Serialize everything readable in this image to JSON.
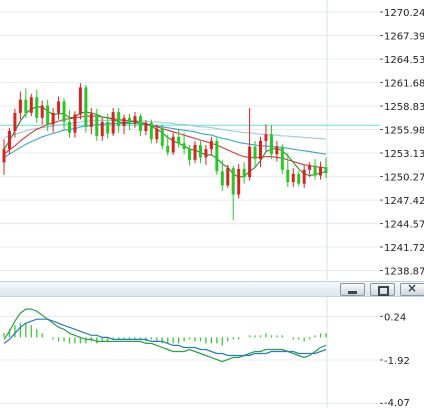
{
  "colors": {
    "background": "#ffffff",
    "grid": "#e6ecef",
    "axis_line": "#cfd6dc",
    "candle_up": "#e02020",
    "candle_down": "#22cc22",
    "ma_short": "#2a8a2a",
    "ma_mid": "#d23c3c",
    "ma_long": "#3aa8c8",
    "ma_xlong": "#9acbd8",
    "highlight_line": "#66dddd",
    "macd_dif": "#2aa04a",
    "macd_dea": "#2a7ab8",
    "macd_hist": "#33cc33"
  },
  "pane_titlebar": {
    "buttons": [
      {
        "name": "minimize-button",
        "icon": "minimize-icon"
      },
      {
        "name": "maximize-button",
        "icon": "maximize-icon"
      },
      {
        "name": "close-button",
        "icon": "close-icon"
      }
    ],
    "close_glyph": "×"
  },
  "chart_data": [
    {
      "type": "candlestick",
      "title": "",
      "ylim": [
        1237.6,
        1271.7
      ],
      "y_ticks": [
        "1270.24",
        "1267.39",
        "1264.53",
        "1261.68",
        "1258.83",
        "1255.98",
        "1253.13",
        "1250.27",
        "1247.42",
        "1244.57",
        "1241.72",
        "1238.87"
      ],
      "y_tick_values": [
        1270.24,
        1267.39,
        1264.53,
        1261.68,
        1258.83,
        1255.98,
        1253.13,
        1250.27,
        1247.42,
        1244.57,
        1241.72,
        1238.87
      ],
      "horizontal_highlight": 1256.5,
      "candles": [
        [
          1252.0,
          1254.8,
          1250.5,
          1253.6
        ],
        [
          1253.6,
          1256.2,
          1253.0,
          1255.8
        ],
        [
          1255.8,
          1258.5,
          1255.0,
          1258.0
        ],
        [
          1258.0,
          1260.6,
          1257.2,
          1259.6
        ],
        [
          1259.6,
          1261.0,
          1257.4,
          1258.0
        ],
        [
          1258.0,
          1260.3,
          1257.6,
          1259.9
        ],
        [
          1259.9,
          1260.8,
          1256.8,
          1257.4
        ],
        [
          1257.4,
          1259.5,
          1256.6,
          1258.9
        ],
        [
          1258.9,
          1259.6,
          1255.8,
          1256.6
        ],
        [
          1256.6,
          1258.6,
          1255.6,
          1258.0
        ],
        [
          1258.0,
          1260.0,
          1257.2,
          1259.4
        ],
        [
          1259.4,
          1259.8,
          1256.0,
          1256.9
        ],
        [
          1256.9,
          1258.3,
          1255.0,
          1255.6
        ],
        [
          1255.6,
          1258.2,
          1255.0,
          1257.8
        ],
        [
          1257.8,
          1261.6,
          1257.2,
          1261.1
        ],
        [
          1261.1,
          1261.4,
          1255.6,
          1256.3
        ],
        [
          1256.3,
          1258.6,
          1255.4,
          1257.9
        ],
        [
          1257.9,
          1258.5,
          1254.6,
          1255.2
        ],
        [
          1255.2,
          1257.4,
          1254.6,
          1256.9
        ],
        [
          1256.9,
          1257.9,
          1254.9,
          1255.5
        ],
        [
          1255.5,
          1258.6,
          1255.2,
          1258.1
        ],
        [
          1258.1,
          1258.6,
          1255.6,
          1256.4
        ],
        [
          1256.4,
          1257.8,
          1255.4,
          1257.4
        ],
        [
          1257.4,
          1257.9,
          1255.9,
          1256.7
        ],
        [
          1256.7,
          1258.1,
          1256.2,
          1257.6
        ],
        [
          1257.6,
          1257.9,
          1255.2,
          1255.8
        ],
        [
          1255.8,
          1257.1,
          1255.3,
          1256.8
        ],
        [
          1256.8,
          1257.2,
          1254.3,
          1254.8
        ],
        [
          1254.8,
          1256.6,
          1254.3,
          1256.1
        ],
        [
          1256.1,
          1256.6,
          1253.6,
          1254.0
        ],
        [
          1254.0,
          1255.4,
          1252.8,
          1253.2
        ],
        [
          1253.2,
          1255.6,
          1252.9,
          1255.1
        ],
        [
          1255.1,
          1256.0,
          1253.8,
          1254.3
        ],
        [
          1254.3,
          1255.6,
          1253.0,
          1253.6
        ],
        [
          1253.6,
          1254.1,
          1251.6,
          1252.3
        ],
        [
          1252.3,
          1254.6,
          1251.9,
          1254.1
        ],
        [
          1254.1,
          1254.6,
          1251.9,
          1252.6
        ],
        [
          1252.6,
          1254.1,
          1251.7,
          1253.6
        ],
        [
          1253.6,
          1255.1,
          1252.9,
          1254.6
        ],
        [
          1254.6,
          1255.0,
          1250.5,
          1250.9
        ],
        [
          1250.9,
          1252.3,
          1248.5,
          1249.2
        ],
        [
          1249.2,
          1251.7,
          1248.9,
          1251.3
        ],
        [
          1251.3,
          1251.6,
          1245.0,
          1248.1
        ],
        [
          1248.1,
          1251.8,
          1247.6,
          1251.2
        ],
        [
          1251.2,
          1252.0,
          1249.4,
          1250.2
        ],
        [
          1250.2,
          1258.6,
          1249.8,
          1253.9
        ],
        [
          1253.9,
          1254.6,
          1251.3,
          1252.4
        ],
        [
          1252.4,
          1255.1,
          1251.4,
          1254.6
        ],
        [
          1254.6,
          1256.6,
          1253.4,
          1255.4
        ],
        [
          1255.4,
          1256.5,
          1252.4,
          1253.0
        ],
        [
          1253.0,
          1254.6,
          1252.1,
          1253.9
        ],
        [
          1253.9,
          1254.2,
          1250.6,
          1251.1
        ],
        [
          1251.1,
          1253.1,
          1249.0,
          1249.6
        ],
        [
          1249.6,
          1251.3,
          1249.0,
          1250.6
        ],
        [
          1250.6,
          1250.9,
          1249.1,
          1249.4
        ],
        [
          1249.4,
          1251.6,
          1248.9,
          1251.1
        ],
        [
          1251.1,
          1252.0,
          1250.2,
          1251.6
        ],
        [
          1251.6,
          1252.4,
          1249.9,
          1250.4
        ],
        [
          1250.4,
          1252.1,
          1249.9,
          1251.4
        ],
        [
          1251.4,
          1252.6,
          1250.1,
          1250.7
        ]
      ],
      "ma_short": [
        1253.6,
        1254.6,
        1255.8,
        1257.0,
        1257.9,
        1258.5,
        1258.7,
        1258.7,
        1258.2,
        1257.8,
        1257.9,
        1257.9,
        1257.4,
        1257.5,
        1258.0,
        1258.1,
        1258.0,
        1257.8,
        1257.5,
        1257.4,
        1257.2,
        1256.9,
        1256.8,
        1256.9,
        1257.0,
        1256.8,
        1256.7,
        1256.4,
        1256.0,
        1255.6,
        1255.0,
        1254.6,
        1254.3,
        1254.0,
        1253.6,
        1253.5,
        1253.2,
        1252.9,
        1252.9,
        1252.5,
        1251.8,
        1251.4,
        1250.6,
        1250.2,
        1250.3,
        1250.9,
        1251.4,
        1252.2,
        1253.3,
        1253.6,
        1253.7,
        1253.4,
        1252.8,
        1252.0,
        1251.2,
        1250.6,
        1250.4,
        1250.5,
        1250.7,
        1250.9
      ],
      "ma_mid": [
        1253.0,
        1253.5,
        1254.0,
        1254.6,
        1255.1,
        1255.6,
        1256.0,
        1256.3,
        1256.6,
        1256.8,
        1257.0,
        1257.2,
        1257.3,
        1257.4,
        1257.5,
        1257.6,
        1257.6,
        1257.6,
        1257.5,
        1257.4,
        1257.3,
        1257.2,
        1257.1,
        1257.0,
        1256.9,
        1256.8,
        1256.7,
        1256.5,
        1256.3,
        1256.1,
        1255.9,
        1255.7,
        1255.5,
        1255.3,
        1255.1,
        1254.9,
        1254.7,
        1254.5,
        1254.3,
        1254.1,
        1253.8,
        1253.5,
        1253.2,
        1252.9,
        1252.7,
        1252.6,
        1252.6,
        1252.6,
        1252.7,
        1252.7,
        1252.6,
        1252.5,
        1252.3,
        1252.1,
        1251.9,
        1251.7,
        1251.6,
        1251.5,
        1251.4,
        1251.3
      ],
      "ma_long": [
        1252.6,
        1253.0,
        1253.4,
        1253.8,
        1254.2,
        1254.5,
        1254.8,
        1255.1,
        1255.3,
        1255.5,
        1255.7,
        1255.9,
        1256.0,
        1256.1,
        1256.3,
        1256.4,
        1256.5,
        1256.6,
        1256.6,
        1256.7,
        1256.7,
        1256.7,
        1256.7,
        1256.7,
        1256.7,
        1256.6,
        1256.6,
        1256.5,
        1256.4,
        1256.3,
        1256.2,
        1256.1,
        1256.0,
        1255.9,
        1255.8,
        1255.7,
        1255.5,
        1255.4,
        1255.3,
        1255.1,
        1254.9,
        1254.8,
        1254.6,
        1254.4,
        1254.3,
        1254.2,
        1254.1,
        1254.0,
        1254.0,
        1253.9,
        1253.9,
        1253.8,
        1253.7,
        1253.6,
        1253.5,
        1253.4,
        1253.3,
        1253.2,
        1253.1,
        1253.0
      ],
      "ma_xlong": [
        1255.0,
        1255.2,
        1255.4,
        1255.6,
        1255.8,
        1256.0,
        1256.1,
        1256.2,
        1256.3,
        1256.4,
        1256.5,
        1256.6,
        1256.7,
        1256.8,
        1256.9,
        1257.0,
        1257.0,
        1257.1,
        1257.1,
        1257.1,
        1257.1,
        1257.1,
        1257.1,
        1257.1,
        1257.1,
        1257.0,
        1257.0,
        1256.9,
        1256.9,
        1256.8,
        1256.8,
        1256.7,
        1256.6,
        1256.6,
        1256.5,
        1256.4,
        1256.3,
        1256.3,
        1256.2,
        1256.1,
        1256.0,
        1255.9,
        1255.8,
        1255.7,
        1255.6,
        1255.6,
        1255.5,
        1255.4,
        1255.4,
        1255.3,
        1255.3,
        1255.2,
        1255.2,
        1255.1,
        1255.1,
        1255.0,
        1255.0,
        1254.9,
        1254.9,
        1254.8
      ]
    },
    {
      "type": "line",
      "title": "",
      "ylim": [
        -4.3,
        1.2
      ],
      "y_ticks": [
        "0.24",
        "-1.92",
        "-4.07"
      ],
      "y_tick_values": [
        0.24,
        -1.92,
        -4.07
      ],
      "zero_level": -0.8,
      "series": [
        {
          "key": "dif",
          "values": [
            -0.9,
            -0.5,
            0.0,
            0.4,
            0.6,
            0.6,
            0.5,
            0.3,
            0.1,
            -0.1,
            -0.3,
            -0.4,
            -0.6,
            -0.7,
            -0.8,
            -0.9,
            -0.9,
            -1.0,
            -1.0,
            -1.0,
            -1.0,
            -1.0,
            -1.0,
            -1.0,
            -1.0,
            -1.0,
            -1.1,
            -1.1,
            -1.2,
            -1.3,
            -1.4,
            -1.5,
            -1.5,
            -1.5,
            -1.4,
            -1.5,
            -1.6,
            -1.7,
            -1.8,
            -1.9,
            -2.0,
            -1.9,
            -1.8,
            -1.8,
            -1.7,
            -1.6,
            -1.5,
            -1.5,
            -1.4,
            -1.4,
            -1.4,
            -1.4,
            -1.5,
            -1.6,
            -1.7,
            -1.8,
            -1.7,
            -1.5,
            -1.3,
            -1.2
          ]
        },
        {
          "key": "dea",
          "values": [
            -1.1,
            -0.9,
            -0.6,
            -0.3,
            -0.1,
            0.0,
            0.1,
            0.1,
            0.1,
            0.0,
            -0.1,
            -0.2,
            -0.3,
            -0.4,
            -0.5,
            -0.6,
            -0.7,
            -0.7,
            -0.8,
            -0.8,
            -0.9,
            -0.9,
            -0.9,
            -0.9,
            -0.9,
            -0.9,
            -0.9,
            -1.0,
            -1.0,
            -1.0,
            -1.1,
            -1.2,
            -1.2,
            -1.3,
            -1.3,
            -1.3,
            -1.4,
            -1.4,
            -1.5,
            -1.6,
            -1.6,
            -1.7,
            -1.7,
            -1.7,
            -1.7,
            -1.7,
            -1.6,
            -1.6,
            -1.6,
            -1.5,
            -1.5,
            -1.5,
            -1.5,
            -1.5,
            -1.6,
            -1.6,
            -1.6,
            -1.6,
            -1.5,
            -1.4
          ]
        }
      ],
      "histogram": [
        0.2,
        0.4,
        0.6,
        0.7,
        0.7,
        0.6,
        0.4,
        0.2,
        0.0,
        -0.1,
        -0.2,
        -0.2,
        -0.3,
        -0.3,
        -0.3,
        -0.3,
        -0.2,
        -0.3,
        -0.2,
        -0.2,
        -0.1,
        -0.1,
        -0.1,
        -0.1,
        -0.1,
        -0.1,
        -0.2,
        -0.1,
        -0.2,
        -0.3,
        -0.3,
        -0.3,
        -0.3,
        -0.2,
        -0.1,
        -0.2,
        -0.2,
        -0.3,
        -0.3,
        -0.3,
        -0.4,
        -0.2,
        -0.1,
        -0.1,
        0.0,
        0.1,
        0.1,
        0.1,
        0.2,
        0.1,
        0.1,
        0.1,
        0.0,
        -0.1,
        -0.1,
        -0.2,
        -0.1,
        0.1,
        0.2,
        0.2
      ]
    }
  ]
}
